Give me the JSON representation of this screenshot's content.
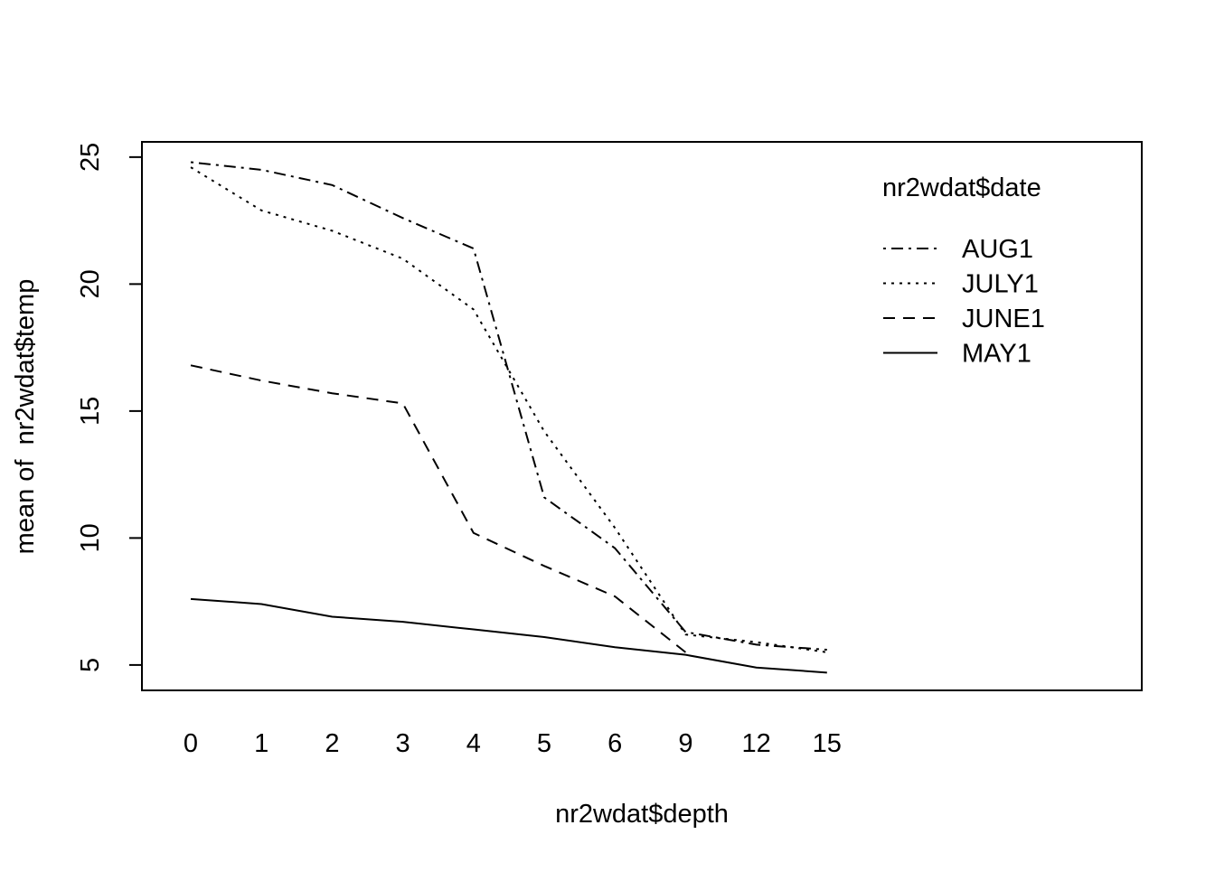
{
  "chart_data": {
    "type": "line",
    "title": "",
    "xlabel": "nr2wdat$depth",
    "ylabel": "mean of  nr2wdat$temp",
    "categories": [
      "0",
      "1",
      "2",
      "3",
      "4",
      "5",
      "6",
      "9",
      "12",
      "15"
    ],
    "yticks": [
      "5",
      "10",
      "15",
      "20",
      "25"
    ],
    "ylim": [
      4,
      25.6
    ],
    "grid": false,
    "legend": {
      "title": "nr2wdat$date",
      "placement": "top-right"
    },
    "series": [
      {
        "name": "AUG1",
        "linestyle": "dotdash",
        "values": [
          24.8,
          24.5,
          23.9,
          22.6,
          21.4,
          11.6,
          9.6,
          6.3,
          5.8,
          5.6
        ]
      },
      {
        "name": "JULY1",
        "linestyle": "dotted",
        "values": [
          24.6,
          22.9,
          22.1,
          21.0,
          19.0,
          14.2,
          10.4,
          6.2,
          5.9,
          5.5
        ]
      },
      {
        "name": "JUNE1",
        "linestyle": "dashed",
        "values": [
          16.8,
          16.2,
          15.7,
          15.3,
          10.2,
          8.9,
          7.7,
          5.5,
          null,
          null
        ]
      },
      {
        "name": "MAY1",
        "linestyle": "solid",
        "values": [
          7.6,
          7.4,
          6.9,
          6.7,
          6.4,
          6.1,
          5.7,
          5.4,
          4.9,
          4.7
        ]
      }
    ]
  }
}
